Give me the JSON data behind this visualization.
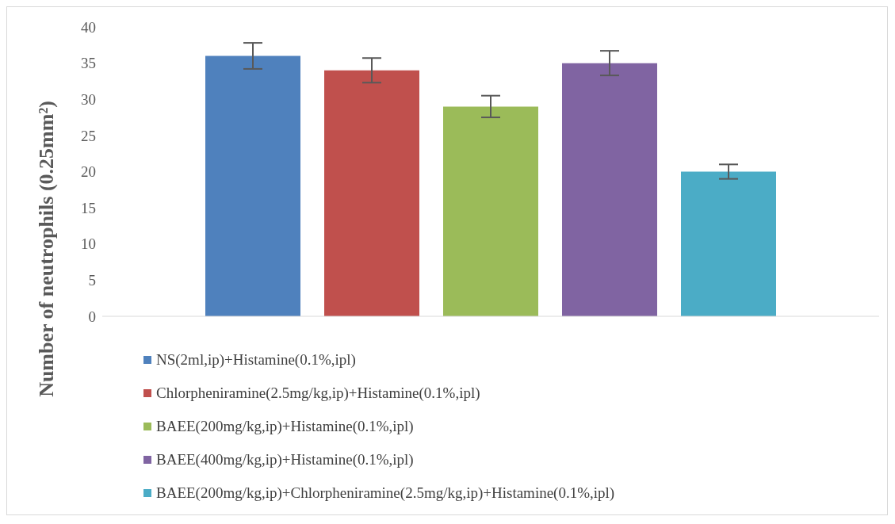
{
  "chart_data": {
    "type": "bar",
    "ylabel": "Number of neutrophils (0.25mm²)",
    "categories": [
      null
    ],
    "series": [
      {
        "name": "NS(2ml,ip)+Histamine(0.1%,ipl)",
        "color": "#4f81bd",
        "values": [
          36
        ],
        "errors": [
          1.8
        ]
      },
      {
        "name": "Chlorpheniramine(2.5mg/kg,ip)+Histamine(0.1%,ipl)",
        "color": "#c0504d",
        "values": [
          34
        ],
        "errors": [
          1.7
        ]
      },
      {
        "name": "BAEE(200mg/kg,ip)+Histamine(0.1%,ipl)",
        "color": "#9bbb59",
        "values": [
          29
        ],
        "errors": [
          1.5
        ]
      },
      {
        "name": "BAEE(400mg/kg,ip)+Histamine(0.1%,ipl)",
        "color": "#8064a2",
        "values": [
          35
        ],
        "errors": [
          1.7
        ]
      },
      {
        "name": "BAEE(200mg/kg,ip)+Chlorpheniramine(2.5mg/kg,ip)+Histamine(0.1%,ipl)",
        "color": "#4bacc6",
        "values": [
          20
        ],
        "errors": [
          1.0
        ]
      }
    ],
    "ylim": [
      0,
      40
    ],
    "yticks": [
      0,
      5,
      10,
      15,
      20,
      25,
      30,
      35,
      40
    ],
    "grid": false,
    "legend": "bottom"
  }
}
